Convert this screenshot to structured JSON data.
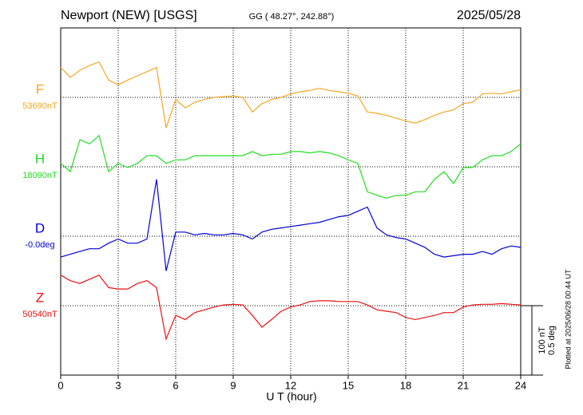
{
  "chart_data": {
    "type": "line",
    "title": "Newport (NEW)  [USGS]",
    "subtitle": "GG ( 48.27°, 242.88°)",
    "date": "2025/05/28",
    "note": "Plotted at 2025/06/28 00:44 UT",
    "xlabel": "U T (hour)",
    "xlim": [
      0,
      24
    ],
    "xticks": [
      0,
      3,
      6,
      9,
      12,
      15,
      18,
      21,
      24
    ],
    "grid": true,
    "scale": [
      {
        "value": 100,
        "label": "100 nT"
      },
      {
        "value": 0.5,
        "label": "0.5 deg"
      }
    ],
    "x": [
      0,
      0.5,
      1,
      1.5,
      2,
      2.5,
      3,
      3.5,
      4,
      4.5,
      5,
      5.5,
      6,
      6.5,
      7,
      7.5,
      8,
      8.5,
      9,
      9.5,
      10,
      10.5,
      11,
      11.5,
      12,
      12.5,
      13,
      13.5,
      14,
      14.5,
      15,
      15.5,
      16,
      16.5,
      17,
      17.5,
      18,
      18.5,
      19,
      19.5,
      20,
      20.5,
      21,
      21.5,
      22,
      22.5,
      23,
      23.5,
      24
    ],
    "series": [
      {
        "name": "F",
        "color": "#f5a623",
        "baseline": {
          "value": 53690,
          "label": "53690nT"
        },
        "values": [
          53733,
          53719,
          53729,
          53736,
          53741,
          53715,
          53708,
          53715,
          53721,
          53727,
          53733,
          53646,
          53687,
          53675,
          53683,
          53687,
          53690,
          53691,
          53692,
          53690,
          53669,
          53681,
          53687,
          53690,
          53695,
          53698,
          53700,
          53703,
          53700,
          53698,
          53696,
          53692,
          53669,
          53667,
          53664,
          53660,
          53656,
          53653,
          53658,
          53664,
          53669,
          53672,
          53681,
          53683,
          53695,
          53696,
          53695,
          53698,
          53701
        ]
      },
      {
        "name": "H",
        "color": "#22dd22",
        "baseline": {
          "value": 18090,
          "label": "18090nT"
        },
        "values": [
          18095,
          18083,
          18129,
          18123,
          18135,
          18083,
          18095,
          18089,
          18095,
          18106,
          18106,
          18095,
          18100,
          18100,
          18106,
          18106,
          18106,
          18106,
          18106,
          18106,
          18112,
          18106,
          18108,
          18108,
          18112,
          18112,
          18110,
          18112,
          18110,
          18106,
          18100,
          18095,
          18054,
          18049,
          18045,
          18049,
          18049,
          18054,
          18054,
          18072,
          18083,
          18066,
          18089,
          18089,
          18100,
          18106,
          18106,
          18112,
          18123
        ]
      },
      {
        "name": "D",
        "color": "#0000dd",
        "axis": "y2",
        "baseline": {
          "value": 0,
          "label": "-0.0deg"
        },
        "values": [
          -0.15,
          -0.13,
          -0.11,
          -0.09,
          -0.09,
          -0.05,
          -0.02,
          -0.05,
          -0.05,
          -0.02,
          0.41,
          -0.25,
          0.03,
          0.03,
          0.01,
          0.02,
          0.01,
          0.01,
          0.02,
          0.01,
          -0.02,
          0.03,
          0.05,
          0.06,
          0.07,
          0.08,
          0.09,
          0.1,
          0.12,
          0.14,
          0.15,
          0.18,
          0.21,
          0.06,
          0.01,
          -0.01,
          -0.02,
          -0.05,
          -0.08,
          -0.13,
          -0.15,
          -0.14,
          -0.13,
          -0.13,
          -0.11,
          -0.13,
          -0.09,
          -0.07,
          -0.08
        ]
      },
      {
        "name": "Z",
        "color": "#ee1111",
        "baseline": {
          "value": 50540,
          "label": "50540nT"
        },
        "values": [
          50584,
          50576,
          50572,
          50578,
          50584,
          50566,
          50564,
          50564,
          50572,
          50576,
          50566,
          50492,
          50526,
          50520,
          50530,
          50534,
          50538,
          50541,
          50542,
          50541,
          50526,
          50509,
          50520,
          50532,
          50538,
          50541,
          50546,
          50547,
          50547,
          50546,
          50546,
          50546,
          50541,
          50534,
          50532,
          50530,
          50523,
          50520,
          50523,
          50526,
          50530,
          50530,
          50538,
          50541,
          50542,
          50542,
          50543,
          50542,
          50541
        ]
      }
    ]
  }
}
